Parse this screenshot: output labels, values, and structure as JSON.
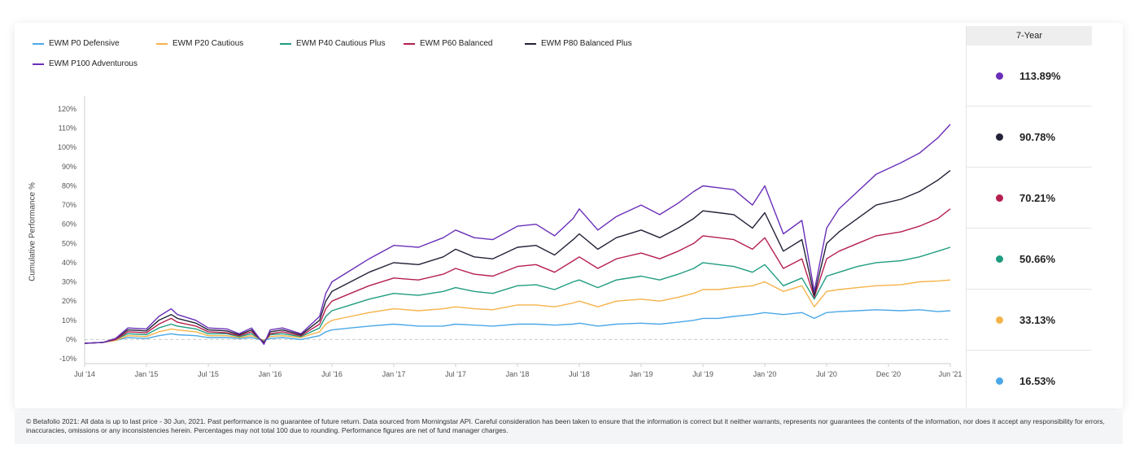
{
  "legend": [
    {
      "label": "EWM P0 Defensive",
      "color": "#4aa8e8"
    },
    {
      "label": "EWM P20 Cautious",
      "color": "#f5b34a"
    },
    {
      "label": "EWM P40 Cautious Plus",
      "color": "#1f9c80"
    },
    {
      "label": "EWM P60 Balanced",
      "color": "#b51f4e"
    },
    {
      "label": "EWM P80 Balanced Plus",
      "color": "#222238"
    },
    {
      "label": "EWM P100 Adventurous",
      "color": "#6a2fb8"
    }
  ],
  "side_panel": {
    "header": "7-Year",
    "rows": [
      {
        "value": "113.89%",
        "color": "#6a2fb8"
      },
      {
        "value": "90.78%",
        "color": "#222238"
      },
      {
        "value": "70.21%",
        "color": "#b51f4e"
      },
      {
        "value": "50.66%",
        "color": "#1f9c80"
      },
      {
        "value": "33.13%",
        "color": "#f5b34a"
      },
      {
        "value": "16.53%",
        "color": "#4aa8e8"
      }
    ]
  },
  "footer": {
    "text": "© Betafolio 2021: All data is up to last price - 30 Jun, 2021. Past performance is no guarantee of future return. Data sourced from Morningstar API. Careful consideration has been taken to ensure that the information is correct but it neither warrants, represents nor guarantees the contents of the information, nor does it accept any responsibility for errors, inaccuracies, omissions or any inconsistencies herein. Percentages may not total 100 due to rounding. Performance figures are net of fund manager charges."
  },
  "chart_data": {
    "type": "line",
    "ylabel": "Cumulative Performance %",
    "ylim": [
      -10,
      120
    ],
    "yticks": [
      "-10%",
      "0%",
      "10%",
      "20%",
      "30%",
      "40%",
      "50%",
      "60%",
      "70%",
      "80%",
      "90%",
      "100%",
      "110%",
      "120%"
    ],
    "xticks": [
      "Jul '14",
      "Jan '15",
      "Jul '15",
      "Jan '16",
      "Jul '16",
      "Jan '17",
      "Jul '17",
      "Jan '18",
      "Jul '18",
      "Jan '19",
      "Jul '19",
      "Jan '20",
      "Jul '20",
      "Dec '20",
      "Jun '21"
    ],
    "x": [
      0,
      0.3,
      0.5,
      0.7,
      1,
      1.2,
      1.4,
      1.5,
      1.8,
      2,
      2.3,
      2.5,
      2.7,
      2.9,
      3,
      3.2,
      3.5,
      3.8,
      3.9,
      4,
      4.3,
      4.6,
      5,
      5.4,
      5.8,
      6,
      6.3,
      6.6,
      7,
      7.3,
      7.6,
      7.9,
      8,
      8.3,
      8.6,
      9,
      9.3,
      9.6,
      9.85,
      10,
      10.25,
      10.5,
      10.8,
      11,
      11.3,
      11.6,
      11.8,
      12,
      12.2,
      12.5,
      12.8,
      13.2,
      13.5,
      13.8,
      14
    ],
    "series": [
      {
        "name": "EWM P0 Defensive",
        "color": "#4aa8e8",
        "values": [
          -2,
          -1.5,
          -0.5,
          1,
          0.5,
          2,
          3,
          2.5,
          2,
          1,
          1,
          0.5,
          1,
          -0.5,
          0.5,
          1,
          0,
          2,
          4,
          5,
          6,
          7,
          8,
          7,
          7,
          8,
          7.5,
          7,
          8,
          8,
          7.5,
          8,
          8.5,
          7,
          8,
          8.5,
          8,
          9,
          10,
          11,
          11,
          12,
          13,
          14,
          13,
          14,
          11,
          14,
          14.5,
          15,
          15.5,
          15,
          15.5,
          14.5,
          15
        ]
      },
      {
        "name": "EWM P20 Cautious",
        "color": "#f5b34a",
        "values": [
          -2,
          -1.5,
          -0.5,
          2,
          1.5,
          4,
          5.5,
          5,
          4,
          2,
          2,
          1,
          2,
          -0.5,
          1.5,
          2,
          1,
          4,
          8,
          10,
          12,
          14,
          16,
          15,
          16,
          17,
          16,
          15.5,
          18,
          18,
          17,
          19,
          20,
          17,
          20,
          21,
          20,
          22,
          24,
          26,
          26,
          27,
          28,
          30,
          25,
          28,
          17,
          25,
          26,
          27,
          28,
          28.5,
          30,
          30.5,
          31
        ]
      },
      {
        "name": "EWM P40 Cautious Plus",
        "color": "#1f9c80",
        "values": [
          -2,
          -1.5,
          0,
          3,
          2.5,
          6,
          8,
          7,
          5.5,
          3,
          3,
          1.5,
          3,
          -1,
          2.5,
          3,
          1.5,
          6,
          12,
          15,
          18,
          21,
          24,
          23,
          25,
          27,
          25,
          24,
          28,
          28.5,
          26,
          30,
          31,
          27,
          31,
          33,
          31,
          34,
          37,
          40,
          39,
          38,
          35,
          39,
          28,
          32,
          21,
          33,
          35,
          38,
          40,
          41,
          43,
          46,
          48
        ]
      },
      {
        "name": "EWM P60 Balanced",
        "color": "#b51f4e",
        "values": [
          -2,
          -1.5,
          0,
          4,
          3.5,
          8,
          11,
          9,
          7,
          4,
          3.5,
          2,
          4,
          -1.5,
          3,
          4,
          2,
          8,
          16,
          20,
          24,
          28,
          32,
          31,
          34,
          37,
          34,
          33,
          38,
          39,
          35,
          41,
          43,
          37,
          42,
          45,
          42,
          46,
          50,
          54,
          53,
          52,
          47,
          53,
          37,
          42,
          22,
          42,
          46,
          50,
          54,
          56,
          59,
          63,
          68
        ]
      },
      {
        "name": "EWM P80 Balanced Plus",
        "color": "#222238",
        "values": [
          -2,
          -1.5,
          0.5,
          5,
          4.5,
          10,
          13,
          11,
          8.5,
          5,
          4.5,
          2.5,
          5,
          -2,
          4,
          5,
          2.5,
          10,
          20,
          25,
          30,
          35,
          40,
          39,
          43,
          47,
          43,
          42,
          48,
          49,
          44,
          52,
          55,
          47,
          53,
          57,
          53,
          58,
          63,
          67,
          66,
          65,
          58,
          66,
          46,
          52,
          23,
          50,
          56,
          63,
          70,
          73,
          77,
          83,
          88
        ]
      },
      {
        "name": "EWM P100 Adventurous",
        "color": "#6a2fb8",
        "values": [
          -2,
          -1.5,
          0.5,
          6,
          5.5,
          12,
          16,
          13,
          10,
          6,
          5.5,
          3,
          6,
          -2.5,
          5,
          6,
          3,
          12,
          24,
          30,
          36,
          42,
          49,
          48,
          53,
          57,
          53,
          52,
          59,
          60,
          54,
          63,
          68,
          57,
          64,
          70,
          65,
          71,
          77,
          80,
          79,
          78,
          70,
          80,
          55,
          62,
          25,
          58,
          68,
          77,
          86,
          92,
          97,
          105,
          112
        ]
      }
    ]
  }
}
